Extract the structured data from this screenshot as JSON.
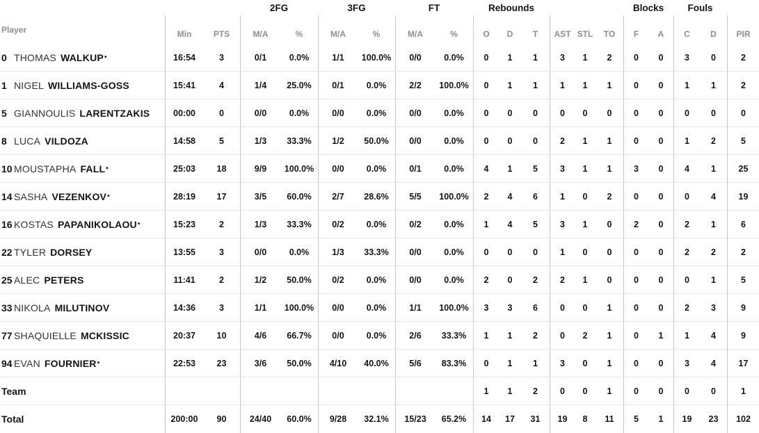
{
  "table": {
    "player_col_label": "Player",
    "starter_mark": "•",
    "groups": {
      "fg2": "2FG",
      "fg3": "3FG",
      "ft": "FT",
      "rebounds": "Rebounds",
      "blocks": "Blocks",
      "fouls": "Fouls"
    },
    "subheaders": {
      "min": "Min",
      "pts": "PTS",
      "ma": "M/A",
      "pct": "%",
      "reb_o": "O",
      "reb_d": "D",
      "reb_t": "T",
      "ast": "AST",
      "stl": "STL",
      "to": "TO",
      "blk_f": "F",
      "blk_a": "A",
      "foul_c": "C",
      "foul_d": "D",
      "pir": "PIR"
    },
    "rows": [
      {
        "type": "player",
        "number": "0",
        "first": "THOMAS",
        "last": "WALKUP",
        "starter": true,
        "min": "16:54",
        "pts": "3",
        "fg2_ma": "0/1",
        "fg2_pct": "0.0%",
        "fg3_ma": "1/1",
        "fg3_pct": "100.0%",
        "ft_ma": "0/0",
        "ft_pct": "0.0%",
        "reb_o": "0",
        "reb_d": "1",
        "reb_t": "1",
        "ast": "3",
        "stl": "1",
        "to": "2",
        "blk_f": "0",
        "blk_a": "0",
        "foul_c": "3",
        "foul_d": "0",
        "pir": "2"
      },
      {
        "type": "player",
        "number": "1",
        "first": "NIGEL",
        "last": "WILLIAMS-GOSS",
        "starter": false,
        "min": "15:41",
        "pts": "4",
        "fg2_ma": "1/4",
        "fg2_pct": "25.0%",
        "fg3_ma": "0/1",
        "fg3_pct": "0.0%",
        "ft_ma": "2/2",
        "ft_pct": "100.0%",
        "reb_o": "0",
        "reb_d": "1",
        "reb_t": "1",
        "ast": "1",
        "stl": "1",
        "to": "1",
        "blk_f": "0",
        "blk_a": "0",
        "foul_c": "1",
        "foul_d": "1",
        "pir": "2"
      },
      {
        "type": "player",
        "number": "5",
        "first": "GIANNOULIS",
        "last": "LARENTZAKIS",
        "starter": false,
        "min": "00:00",
        "pts": "0",
        "fg2_ma": "0/0",
        "fg2_pct": "0.0%",
        "fg3_ma": "0/0",
        "fg3_pct": "0.0%",
        "ft_ma": "0/0",
        "ft_pct": "0.0%",
        "reb_o": "0",
        "reb_d": "0",
        "reb_t": "0",
        "ast": "0",
        "stl": "0",
        "to": "0",
        "blk_f": "0",
        "blk_a": "0",
        "foul_c": "0",
        "foul_d": "0",
        "pir": "0"
      },
      {
        "type": "player",
        "number": "8",
        "first": "LUCA",
        "last": "VILDOZA",
        "starter": false,
        "min": "14:58",
        "pts": "5",
        "fg2_ma": "1/3",
        "fg2_pct": "33.3%",
        "fg3_ma": "1/2",
        "fg3_pct": "50.0%",
        "ft_ma": "0/0",
        "ft_pct": "0.0%",
        "reb_o": "0",
        "reb_d": "0",
        "reb_t": "0",
        "ast": "2",
        "stl": "1",
        "to": "1",
        "blk_f": "0",
        "blk_a": "0",
        "foul_c": "1",
        "foul_d": "2",
        "pir": "5"
      },
      {
        "type": "player",
        "number": "10",
        "first": "MOUSTAPHA",
        "last": "FALL",
        "starter": true,
        "min": "25:03",
        "pts": "18",
        "fg2_ma": "9/9",
        "fg2_pct": "100.0%",
        "fg3_ma": "0/0",
        "fg3_pct": "0.0%",
        "ft_ma": "0/1",
        "ft_pct": "0.0%",
        "reb_o": "4",
        "reb_d": "1",
        "reb_t": "5",
        "ast": "3",
        "stl": "1",
        "to": "1",
        "blk_f": "3",
        "blk_a": "0",
        "foul_c": "4",
        "foul_d": "1",
        "pir": "25"
      },
      {
        "type": "player",
        "number": "14",
        "first": "SASHA",
        "last": "VEZENKOV",
        "starter": true,
        "min": "28:19",
        "pts": "17",
        "fg2_ma": "3/5",
        "fg2_pct": "60.0%",
        "fg3_ma": "2/7",
        "fg3_pct": "28.6%",
        "ft_ma": "5/5",
        "ft_pct": "100.0%",
        "reb_o": "2",
        "reb_d": "4",
        "reb_t": "6",
        "ast": "1",
        "stl": "0",
        "to": "2",
        "blk_f": "0",
        "blk_a": "0",
        "foul_c": "0",
        "foul_d": "4",
        "pir": "19"
      },
      {
        "type": "player",
        "number": "16",
        "first": "KOSTAS",
        "last": "PAPANIKOLAOU",
        "starter": true,
        "min": "15:23",
        "pts": "2",
        "fg2_ma": "1/3",
        "fg2_pct": "33.3%",
        "fg3_ma": "0/2",
        "fg3_pct": "0.0%",
        "ft_ma": "0/2",
        "ft_pct": "0.0%",
        "reb_o": "1",
        "reb_d": "4",
        "reb_t": "5",
        "ast": "3",
        "stl": "1",
        "to": "0",
        "blk_f": "2",
        "blk_a": "0",
        "foul_c": "2",
        "foul_d": "1",
        "pir": "6"
      },
      {
        "type": "player",
        "number": "22",
        "first": "TYLER",
        "last": "DORSEY",
        "starter": false,
        "min": "13:55",
        "pts": "3",
        "fg2_ma": "0/0",
        "fg2_pct": "0.0%",
        "fg3_ma": "1/3",
        "fg3_pct": "33.3%",
        "ft_ma": "0/0",
        "ft_pct": "0.0%",
        "reb_o": "0",
        "reb_d": "0",
        "reb_t": "0",
        "ast": "1",
        "stl": "0",
        "to": "0",
        "blk_f": "0",
        "blk_a": "0",
        "foul_c": "2",
        "foul_d": "2",
        "pir": "2"
      },
      {
        "type": "player",
        "number": "25",
        "first": "ALEC",
        "last": "PETERS",
        "starter": false,
        "min": "11:41",
        "pts": "2",
        "fg2_ma": "1/2",
        "fg2_pct": "50.0%",
        "fg3_ma": "0/2",
        "fg3_pct": "0.0%",
        "ft_ma": "0/0",
        "ft_pct": "0.0%",
        "reb_o": "2",
        "reb_d": "0",
        "reb_t": "2",
        "ast": "2",
        "stl": "1",
        "to": "0",
        "blk_f": "0",
        "blk_a": "0",
        "foul_c": "0",
        "foul_d": "1",
        "pir": "5"
      },
      {
        "type": "player",
        "number": "33",
        "first": "NIKOLA",
        "last": "MILUTINOV",
        "starter": false,
        "min": "14:36",
        "pts": "3",
        "fg2_ma": "1/1",
        "fg2_pct": "100.0%",
        "fg3_ma": "0/0",
        "fg3_pct": "0.0%",
        "ft_ma": "1/1",
        "ft_pct": "100.0%",
        "reb_o": "3",
        "reb_d": "3",
        "reb_t": "6",
        "ast": "0",
        "stl": "0",
        "to": "1",
        "blk_f": "0",
        "blk_a": "0",
        "foul_c": "2",
        "foul_d": "3",
        "pir": "9"
      },
      {
        "type": "player",
        "number": "77",
        "first": "SHAQUIELLE",
        "last": "MCKISSIC",
        "starter": false,
        "min": "20:37",
        "pts": "10",
        "fg2_ma": "4/6",
        "fg2_pct": "66.7%",
        "fg3_ma": "0/0",
        "fg3_pct": "0.0%",
        "ft_ma": "2/6",
        "ft_pct": "33.3%",
        "reb_o": "1",
        "reb_d": "1",
        "reb_t": "2",
        "ast": "0",
        "stl": "2",
        "to": "1",
        "blk_f": "0",
        "blk_a": "1",
        "foul_c": "1",
        "foul_d": "4",
        "pir": "9"
      },
      {
        "type": "player",
        "number": "94",
        "first": "EVAN",
        "last": "FOURNIER",
        "starter": true,
        "min": "22:53",
        "pts": "23",
        "fg2_ma": "3/6",
        "fg2_pct": "50.0%",
        "fg3_ma": "4/10",
        "fg3_pct": "40.0%",
        "ft_ma": "5/6",
        "ft_pct": "83.3%",
        "reb_o": "0",
        "reb_d": "1",
        "reb_t": "1",
        "ast": "3",
        "stl": "0",
        "to": "1",
        "blk_f": "0",
        "blk_a": "0",
        "foul_c": "3",
        "foul_d": "4",
        "pir": "17"
      },
      {
        "type": "team",
        "label": "Team",
        "starter": false,
        "reb_o": "1",
        "reb_d": "1",
        "reb_t": "2",
        "ast": "0",
        "stl": "0",
        "to": "1",
        "blk_f": "0",
        "blk_a": "0",
        "foul_c": "0",
        "foul_d": "0",
        "pir": "1"
      },
      {
        "type": "total",
        "label": "Total",
        "starter": false,
        "min": "200:00",
        "pts": "90",
        "fg2_ma": "24/40",
        "fg2_pct": "60.0%",
        "fg3_ma": "9/28",
        "fg3_pct": "32.1%",
        "ft_ma": "15/23",
        "ft_pct": "65.2%",
        "reb_o": "14",
        "reb_d": "17",
        "reb_t": "31",
        "ast": "19",
        "stl": "8",
        "to": "11",
        "blk_f": "5",
        "blk_a": "1",
        "foul_c": "19",
        "foul_d": "23",
        "pir": "102"
      }
    ]
  }
}
